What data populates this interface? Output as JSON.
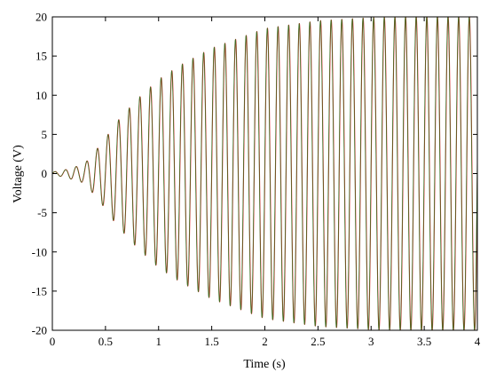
{
  "chart_data": {
    "type": "line",
    "title": "",
    "xlabel": "Time (s)",
    "ylabel": "Voltage (V)",
    "xlim": [
      0,
      4
    ],
    "ylim": [
      -20,
      20
    ],
    "x_ticks": [
      0,
      0.5,
      1,
      1.5,
      2,
      2.5,
      3,
      3.5,
      4
    ],
    "y_ticks": [
      -20,
      -15,
      -10,
      -5,
      0,
      5,
      10,
      15,
      20
    ],
    "x_tick_labels": [
      "0",
      "0.5",
      "1",
      "1.5",
      "2",
      "2.5",
      "3",
      "3.5",
      "4"
    ],
    "y_tick_labels": [
      "-20",
      "-15",
      "-10",
      "-5",
      "0",
      "5",
      "10",
      "15",
      "20"
    ],
    "grid": false,
    "legend": "none",
    "series": [
      {
        "color": "#e8202a",
        "oscillation_frequency_hz": 10,
        "envelope": {
          "time": [
            0,
            0.1,
            0.2,
            0.3,
            0.4,
            0.5,
            0.6,
            0.7,
            0.8,
            1.0,
            1.2,
            1.5,
            2.0,
            2.5,
            3.0,
            3.5,
            4.0
          ],
          "amplitude": [
            0.2,
            0.4,
            0.8,
            1.2,
            2.8,
            4.5,
            6.5,
            8.0,
            9.5,
            12.0,
            13.8,
            16.0,
            18.5,
            19.5,
            19.9,
            20.0,
            20.0
          ]
        }
      },
      {
        "color": "#1f7a1f",
        "oscillation_frequency_hz": 10,
        "envelope": {
          "time": [
            0,
            0.1,
            0.2,
            0.3,
            0.4,
            0.5,
            0.6,
            0.7,
            0.8,
            1.0,
            1.2,
            1.5,
            2.0,
            2.5,
            3.0,
            3.5,
            4.0
          ],
          "amplitude": [
            0.2,
            0.4,
            0.8,
            1.2,
            2.8,
            4.5,
            6.5,
            8.0,
            9.5,
            12.0,
            13.8,
            16.0,
            18.5,
            19.5,
            19.9,
            20.0,
            20.0
          ]
        }
      }
    ]
  }
}
